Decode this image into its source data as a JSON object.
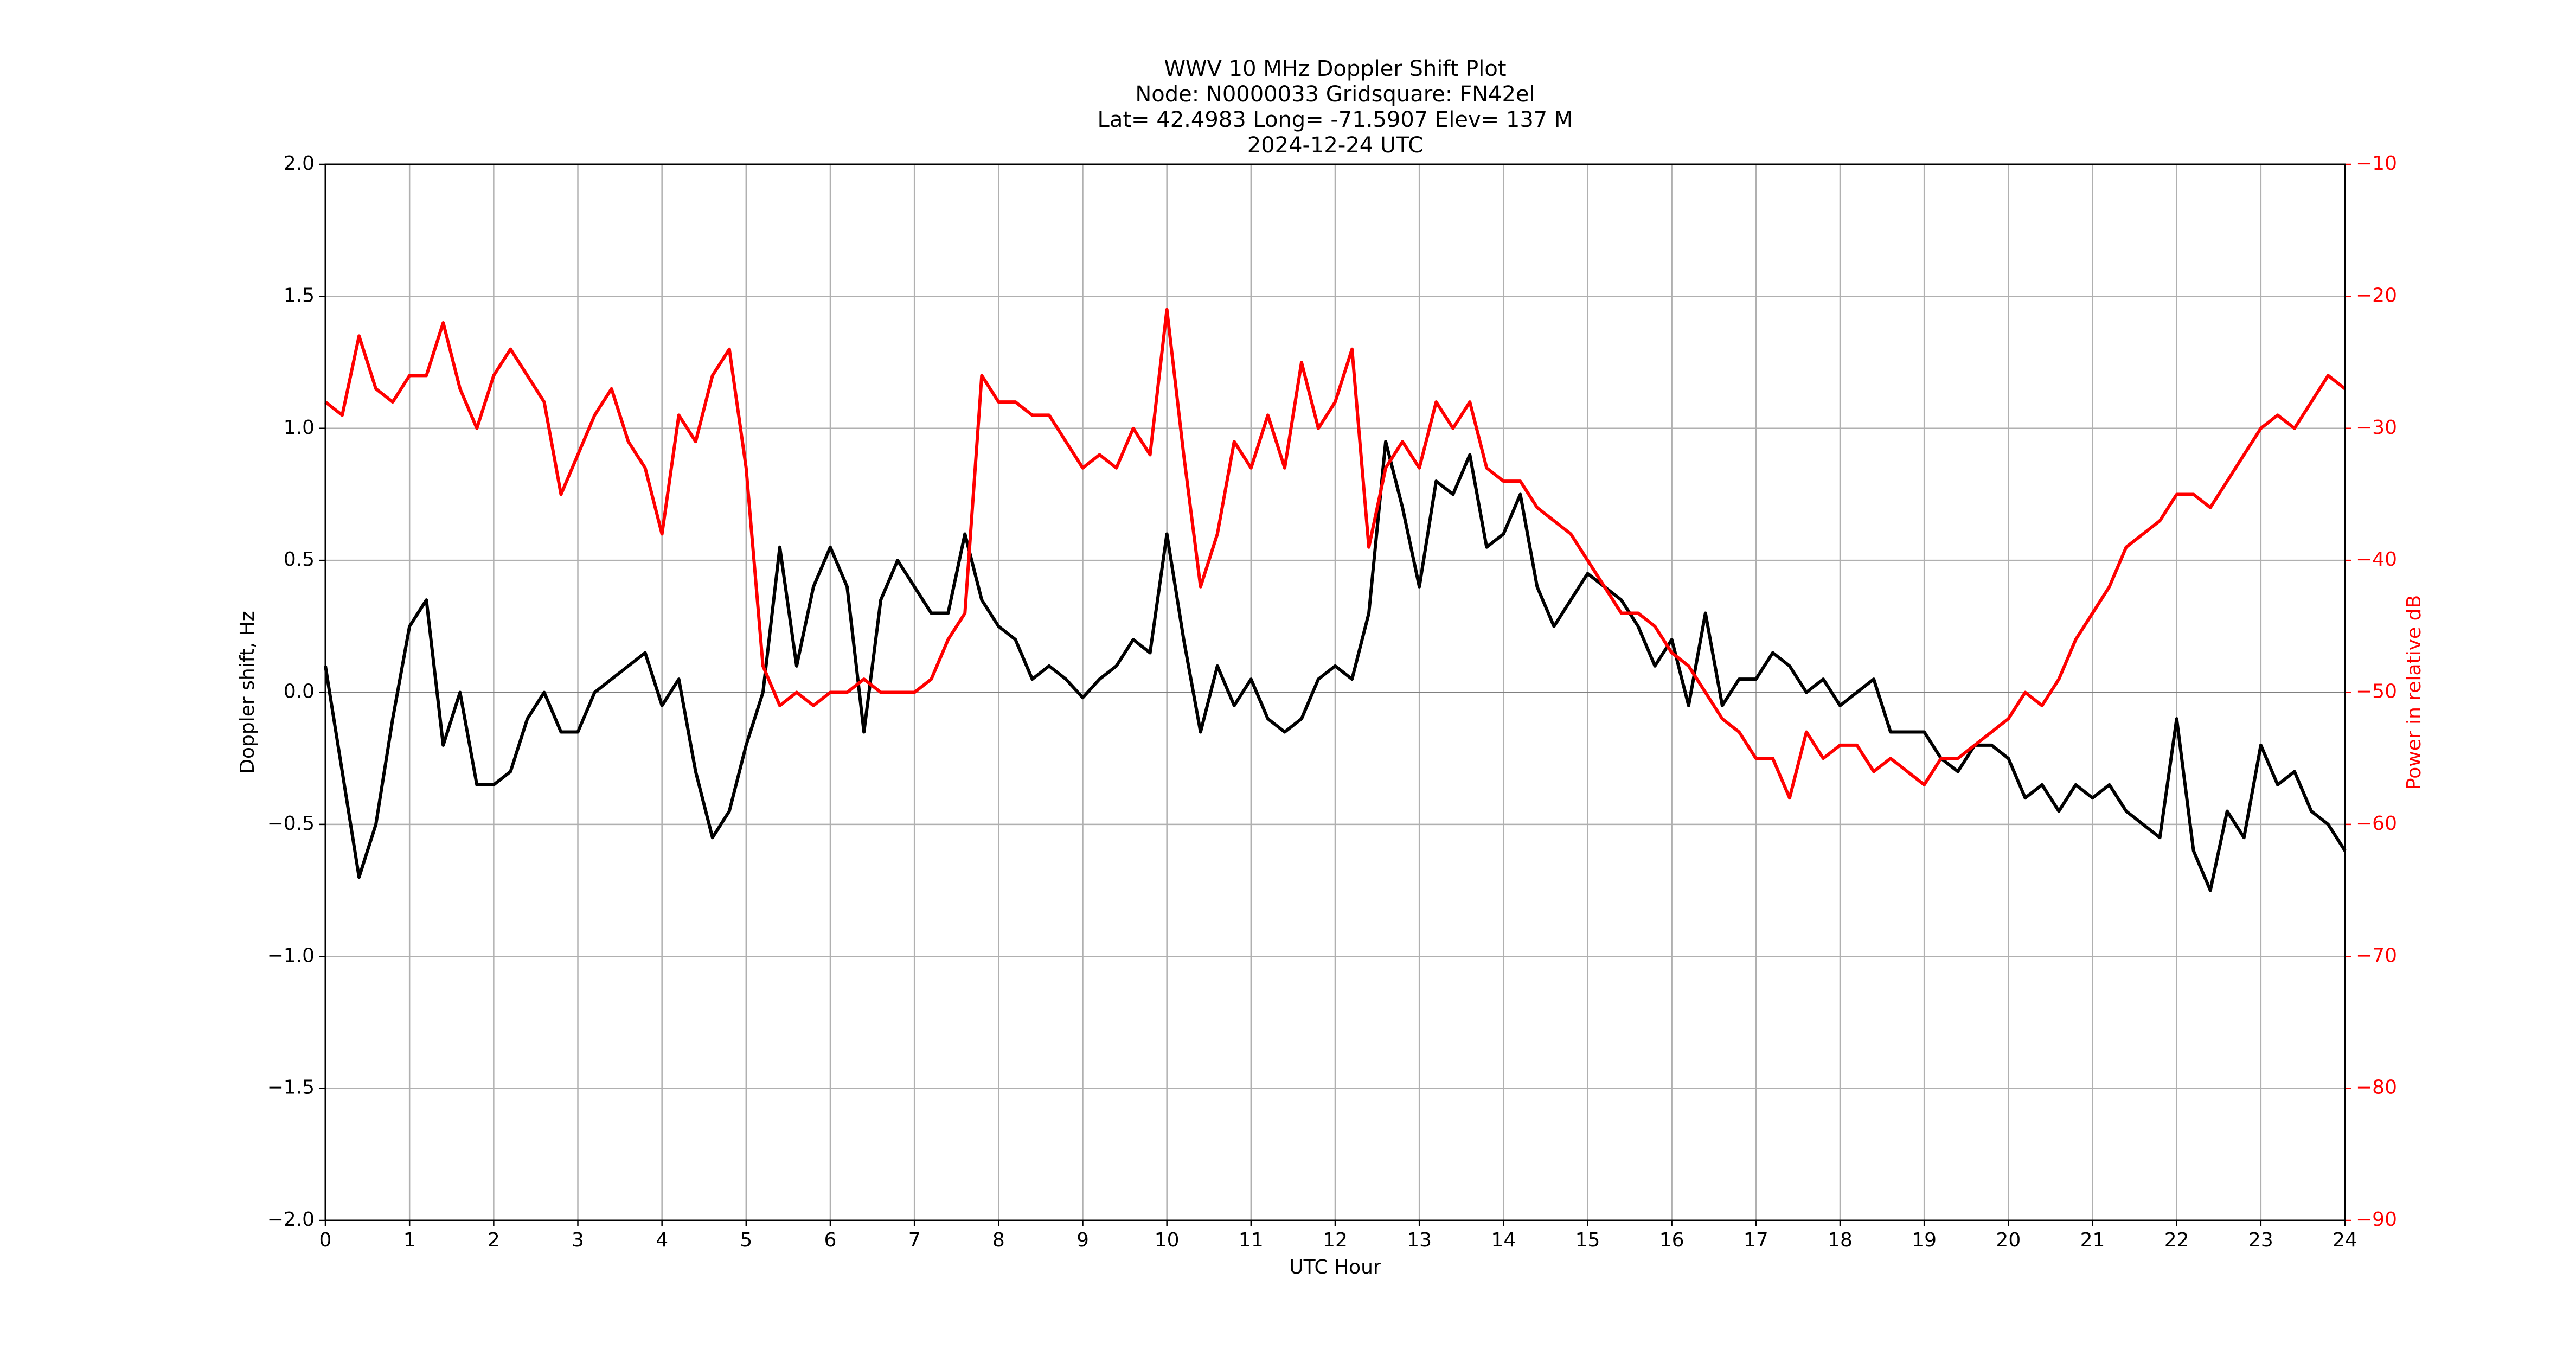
{
  "chart_data": {
    "type": "line",
    "title": [
      "WWV 10 MHz Doppler Shift Plot",
      "Node:  N0000033     Gridsquare:  FN42el",
      "Lat= 42.4983    Long= -71.5907    Elev= 137 M",
      "2024-12-24  UTC"
    ],
    "xlabel": "UTC Hour",
    "ylabel": "Doppler shift, Hz",
    "y2label": "Power in relative dB",
    "y2color": "#ff0000",
    "grid": true,
    "zero_line": true,
    "xlim": [
      0,
      24
    ],
    "xticks": [
      0,
      1,
      2,
      3,
      4,
      5,
      6,
      7,
      8,
      9,
      10,
      11,
      12,
      13,
      14,
      15,
      16,
      17,
      18,
      19,
      20,
      21,
      22,
      23,
      24
    ],
    "ylim": [
      -2,
      2
    ],
    "yticks": [
      {
        "value": -2,
        "label": "−2.0"
      },
      {
        "value": -1.5,
        "label": "−1.5"
      },
      {
        "value": -1,
        "label": "−1.0"
      },
      {
        "value": -0.5,
        "label": "−0.5"
      },
      {
        "value": 0,
        "label": "0.0"
      },
      {
        "value": 0.5,
        "label": "0.5"
      },
      {
        "value": 1,
        "label": "1.0"
      },
      {
        "value": 1.5,
        "label": "1.5"
      },
      {
        "value": 2,
        "label": "2.0"
      }
    ],
    "y2lim": [
      -90,
      -10
    ],
    "y2ticks": [
      {
        "value": -90,
        "label": "−90"
      },
      {
        "value": -80,
        "label": "−80"
      },
      {
        "value": -70,
        "label": "−70"
      },
      {
        "value": -60,
        "label": "−60"
      },
      {
        "value": -50,
        "label": "−50"
      },
      {
        "value": -40,
        "label": "−40"
      },
      {
        "value": -30,
        "label": "−30"
      },
      {
        "value": -20,
        "label": "−20"
      },
      {
        "value": -10,
        "label": "−10"
      }
    ],
    "x": [
      0,
      0.2,
      0.4,
      0.6,
      0.8,
      1,
      1.2,
      1.4,
      1.6,
      1.8,
      2,
      2.2,
      2.4,
      2.6,
      2.8,
      3,
      3.2,
      3.4,
      3.6,
      3.8,
      4,
      4.2,
      4.4,
      4.6,
      4.8,
      5,
      5.2,
      5.4,
      5.6,
      5.8,
      6,
      6.2,
      6.4,
      6.6,
      6.8,
      7,
      7.2,
      7.4,
      7.6,
      7.8,
      8,
      8.2,
      8.4,
      8.6,
      8.8,
      9,
      9.2,
      9.4,
      9.6,
      9.8,
      10,
      10.2,
      10.4,
      10.6,
      10.8,
      11,
      11.2,
      11.4,
      11.6,
      11.8,
      12,
      12.2,
      12.4,
      12.6,
      12.8,
      13,
      13.2,
      13.4,
      13.6,
      13.8,
      14,
      14.2,
      14.4,
      14.6,
      14.8,
      15,
      15.2,
      15.4,
      15.6,
      15.8,
      16,
      16.2,
      16.4,
      16.6,
      16.8,
      17,
      17.2,
      17.4,
      17.6,
      17.8,
      18,
      18.2,
      18.4,
      18.6,
      18.8,
      19,
      19.2,
      19.4,
      19.6,
      19.8,
      20,
      20.2,
      20.4,
      20.6,
      20.8,
      21,
      21.2,
      21.4,
      21.6,
      21.8,
      22,
      22.2,
      22.4,
      22.6,
      22.8,
      23,
      23.2,
      23.4,
      23.6,
      23.8,
      24
    ],
    "series": [
      {
        "color": "#000000",
        "values": [
          0.1,
          -0.3,
          -0.7,
          -0.5,
          -0.1,
          0.25,
          0.35,
          -0.2,
          0,
          -0.35,
          -0.35,
          -0.3,
          -0.1,
          0,
          -0.15,
          -0.15,
          0,
          0.05,
          0.1,
          0.15,
          -0.05,
          0.05,
          -0.3,
          -0.55,
          -0.45,
          -0.2,
          0,
          0.55,
          0.1,
          0.4,
          0.55,
          0.4,
          -0.15,
          0.35,
          0.5,
          0.4,
          0.3,
          0.3,
          0.6,
          0.35,
          0.25,
          0.2,
          0.05,
          0.1,
          0.05,
          -0.02,
          0.05,
          0.1,
          0.2,
          0.15,
          0.6,
          0.2,
          -0.15,
          0.1,
          -0.05,
          0.05,
          -0.1,
          -0.15,
          -0.1,
          0.05,
          0.1,
          0.05,
          0.3,
          0.95,
          0.7,
          0.4,
          0.8,
          0.75,
          0.9,
          0.55,
          0.6,
          0.75,
          0.4,
          0.25,
          0.35,
          0.45,
          0.4,
          0.35,
          0.25,
          0.1,
          0.2,
          -0.05,
          0.3,
          -0.05,
          0.05,
          0.05,
          0.15,
          0.1,
          0,
          0.05,
          -0.05,
          0,
          0.05,
          -0.15,
          -0.15,
          -0.15,
          -0.25,
          -0.3,
          -0.2,
          -0.2,
          -0.25,
          -0.4,
          -0.35,
          -0.45,
          -0.35,
          -0.4,
          -0.35,
          -0.45,
          -0.5,
          -0.55,
          -0.1,
          -0.6,
          -0.75,
          -0.45,
          -0.55,
          -0.2,
          -0.35,
          -0.3,
          -0.45,
          -0.5,
          -0.6
        ]
      },
      {
        "color": "#ff0000",
        "axis": "y2",
        "values": [
          -28,
          -29,
          -23,
          -27,
          -28,
          -26,
          -26,
          -22,
          -27,
          -30,
          -26,
          -24,
          -26,
          -28,
          -35,
          -32,
          -29,
          -27,
          -31,
          -33,
          -38,
          -29,
          -31,
          -26,
          -24,
          -33,
          -48,
          -51,
          -50,
          -51,
          -50,
          -50,
          -49,
          -50,
          -50,
          -50,
          -49,
          -46,
          -44,
          -26,
          -28,
          -28,
          -29,
          -29,
          -31,
          -33,
          -32,
          -33,
          -30,
          -32,
          -21,
          -32,
          -42,
          -38,
          -31,
          -33,
          -29,
          -33,
          -25,
          -30,
          -28,
          -24,
          -39,
          -33,
          -31,
          -33,
          -28,
          -30,
          -28,
          -33,
          -34,
          -34,
          -36,
          -37,
          -38,
          -40,
          -42,
          -44,
          -44,
          -45,
          -47,
          -48,
          -50,
          -52,
          -53,
          -55,
          -55,
          -58,
          -53,
          -55,
          -54,
          -54,
          -56,
          -55,
          -56,
          -57,
          -55,
          -55,
          -54,
          -53,
          -52,
          -50,
          -51,
          -49,
          -46,
          -44,
          -42,
          -39,
          -38,
          -37,
          -35,
          -35,
          -36,
          -34,
          -32,
          -30,
          -29,
          -30,
          -28,
          -26,
          -27
        ]
      }
    ]
  }
}
